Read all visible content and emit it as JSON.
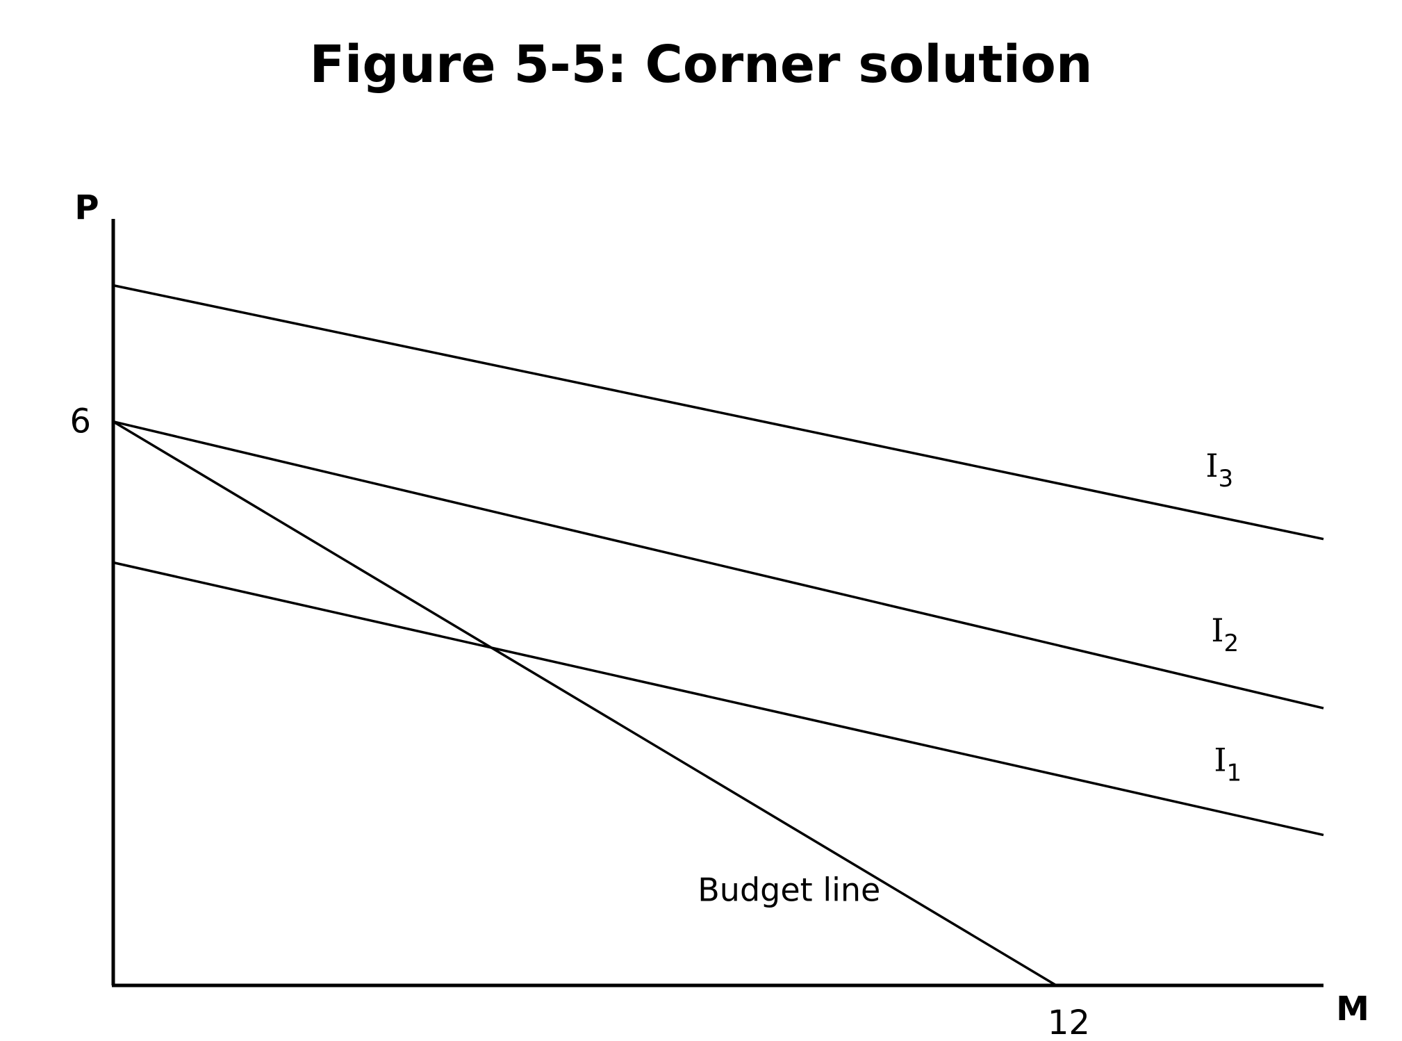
{
  "chart_data": {
    "type": "line",
    "title": "Figure 5-5: Corner solution",
    "xlabel": "M",
    "ylabel": "P",
    "xlim": [
      0,
      15.4
    ],
    "ylim": [
      0,
      7.95
    ],
    "xticks": [
      {
        "value": 12,
        "label": "12"
      }
    ],
    "yticks": [
      {
        "value": 6,
        "label": "6"
      }
    ],
    "grid": false,
    "series": [
      {
        "id": "I1",
        "name": "I",
        "sub": "1",
        "x": [
          0,
          15.4
        ],
        "y": [
          4.5,
          1.6
        ]
      },
      {
        "id": "I2",
        "name": "I",
        "sub": "2",
        "x": [
          0,
          15.4
        ],
        "y": [
          6.0,
          2.95
        ]
      },
      {
        "id": "I3",
        "name": "I",
        "sub": "3",
        "x": [
          0,
          15.4
        ],
        "y": [
          7.45,
          4.75
        ]
      },
      {
        "id": "budget",
        "name": "Budget line",
        "x": [
          0,
          12
        ],
        "y": [
          6,
          0
        ]
      }
    ]
  }
}
